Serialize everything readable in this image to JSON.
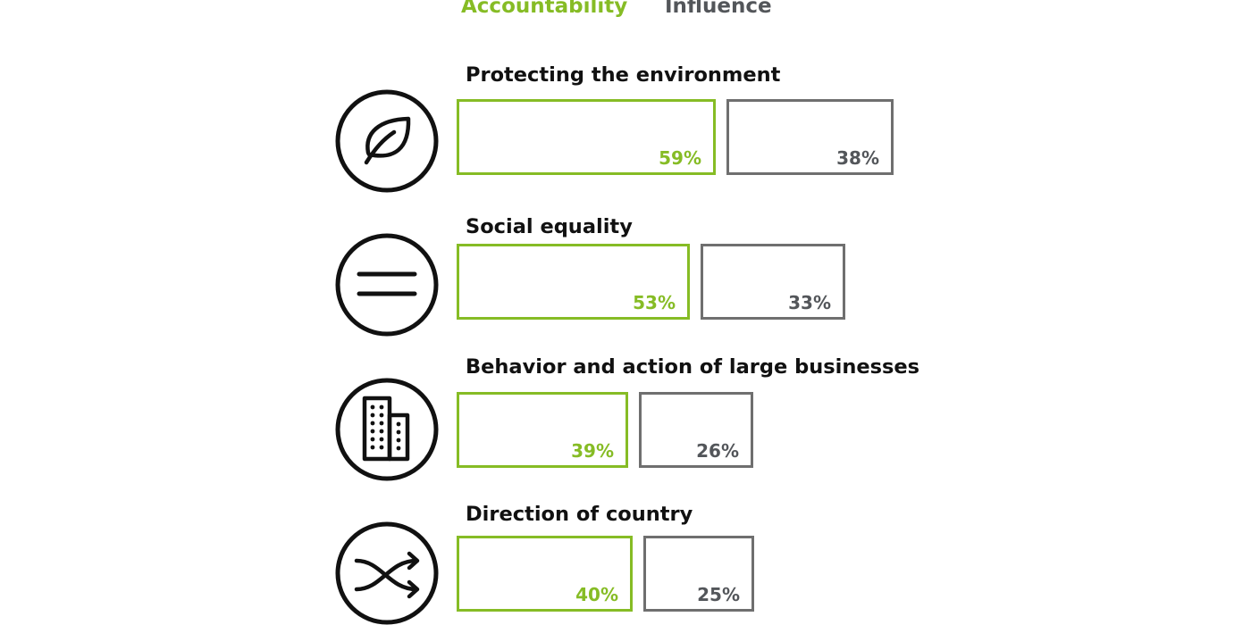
{
  "legend": {
    "accountability": "Accountability",
    "influence": "Influence"
  },
  "colors": {
    "accountability": "#86bc25",
    "influence": "#6f6f6f",
    "influence_text": "#53565a",
    "ink": "#111111"
  },
  "chart_data": {
    "type": "bar",
    "orientation": "horizontal",
    "categories": [
      "Protecting the environment",
      "Social equality",
      "Behavior and action of large businesses",
      "Direction of country"
    ],
    "series": [
      {
        "name": "Accountability",
        "values": [
          59,
          53,
          39,
          40
        ]
      },
      {
        "name": "Influence",
        "values": [
          38,
          33,
          26,
          25
        ]
      }
    ],
    "value_labels": {
      "Accountability": [
        "59%",
        "53%",
        "39%",
        "40%"
      ],
      "Influence": [
        "38%",
        "33%",
        "26%",
        "25%"
      ]
    },
    "icons": [
      "leaf-icon",
      "equals-icon",
      "building-icon",
      "shuffle-icon"
    ],
    "legend_position": "top",
    "grid": false,
    "axes": "none"
  }
}
